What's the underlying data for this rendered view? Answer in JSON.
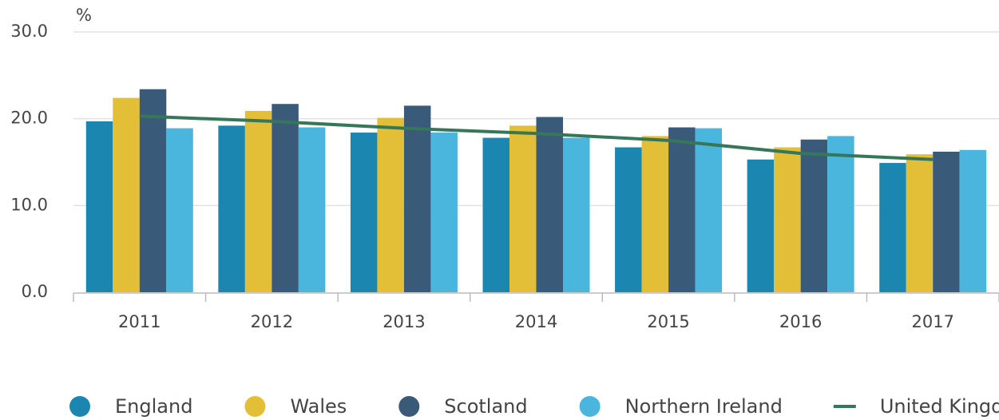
{
  "chart_data": {
    "type": "bar",
    "y_label": "%",
    "categories": [
      "2011",
      "2012",
      "2013",
      "2014",
      "2015",
      "2016",
      "2017"
    ],
    "series": [
      {
        "name": "England",
        "color": "#1b86b0",
        "values": [
          19.7,
          19.2,
          18.4,
          17.8,
          16.7,
          15.3,
          14.9
        ]
      },
      {
        "name": "Wales",
        "color": "#e3bf38",
        "values": [
          22.4,
          20.9,
          20.1,
          19.2,
          18.0,
          16.7,
          15.9
        ]
      },
      {
        "name": "Scotland",
        "color": "#3a5a7a",
        "values": [
          23.4,
          21.7,
          21.5,
          20.2,
          19.0,
          17.6,
          16.2
        ]
      },
      {
        "name": "Northern Ireland",
        "color": "#4ab5dd",
        "values": [
          18.9,
          19.0,
          18.4,
          17.8,
          18.9,
          18.0,
          16.4
        ]
      },
      {
        "name": "United Kingdom",
        "color": "#36775a",
        "type": "line",
        "values": [
          20.3,
          19.7,
          18.9,
          18.3,
          17.5,
          16.0,
          15.3
        ]
      }
    ],
    "ylim": [
      0,
      30
    ],
    "yticks": [
      {
        "value": 0,
        "label": "0.0"
      },
      {
        "value": 10,
        "label": "10.0"
      },
      {
        "value": 20,
        "label": "20.0"
      },
      {
        "value": 30,
        "label": "30.0"
      }
    ],
    "grid": true,
    "legend": "bottom"
  }
}
